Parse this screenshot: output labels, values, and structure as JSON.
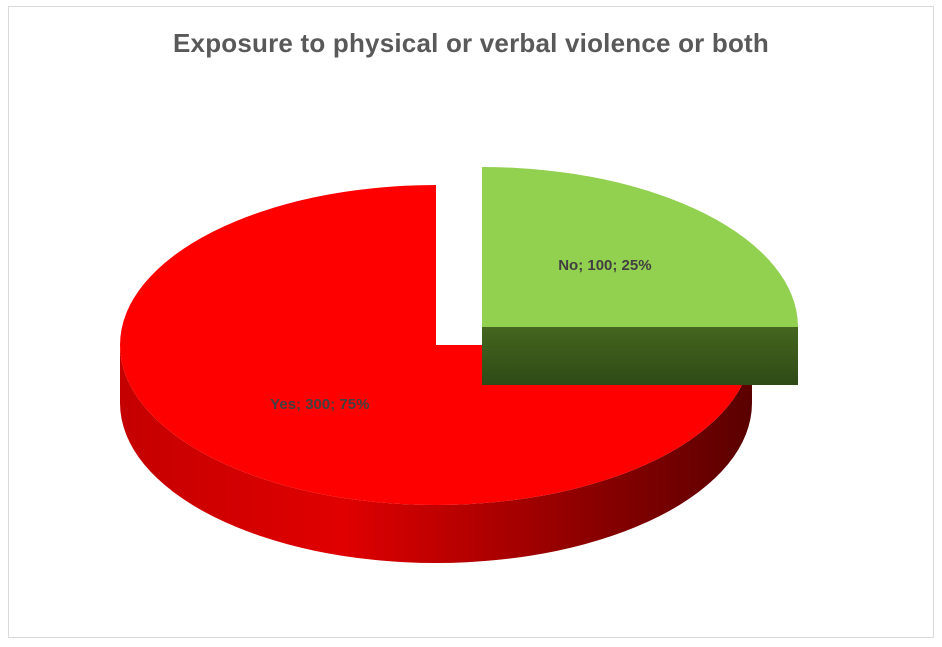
{
  "chart_data": {
    "type": "pie",
    "title": "Exposure to physical or verbal violence or both",
    "style": "3d-exploded",
    "slices": [
      {
        "label": "No",
        "value": 100,
        "percent": 25,
        "display": "No; 100; 25%",
        "color": "#92d050",
        "side_color": "#3a5a1e"
      },
      {
        "label": "Yes",
        "value": 300,
        "percent": 75,
        "display": "Yes; 300; 75%",
        "color": "#ff0000",
        "side_color": "#8b0000"
      }
    ]
  }
}
